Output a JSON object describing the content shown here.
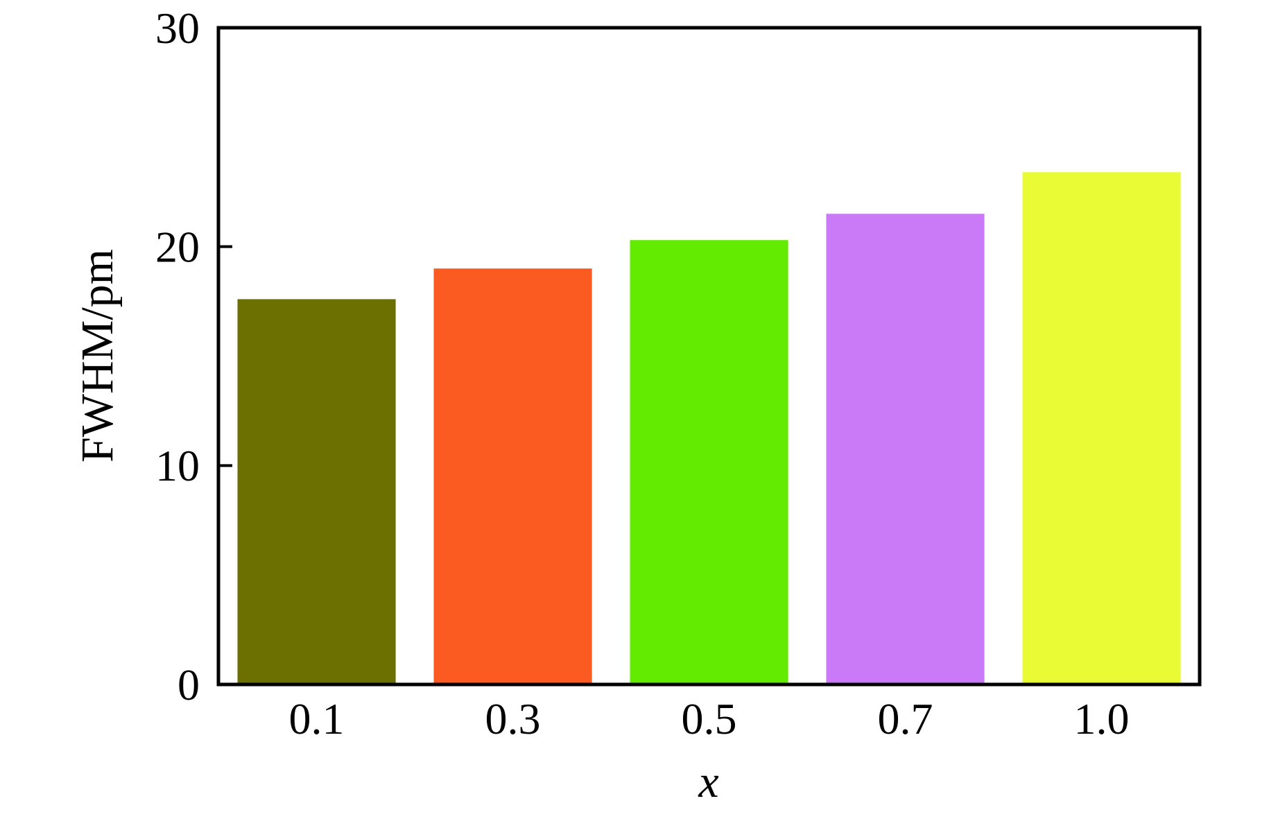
{
  "chart_data": {
    "type": "bar",
    "title": "",
    "xlabel": "x",
    "ylabel": "FWHM/pm",
    "categories": [
      "0.1",
      "0.3",
      "0.5",
      "0.7",
      "1.0"
    ],
    "values": [
      17.6,
      19.0,
      20.3,
      21.5,
      23.4
    ],
    "series_name": "FWHM",
    "bar_colors": [
      "#6B7000",
      "#FB5A21",
      "#63EB02",
      "#CB7AF7",
      "#E9FB34"
    ],
    "ylim": [
      0,
      30
    ],
    "yticks": [
      0,
      10,
      20,
      30
    ],
    "ytick_labels": [
      "0",
      "10",
      "20",
      "30"
    ],
    "grid": false,
    "legend_position": "none",
    "axis_color": "#000000",
    "background_color": "#FFFFFF",
    "bar_width_fraction": 0.806
  }
}
